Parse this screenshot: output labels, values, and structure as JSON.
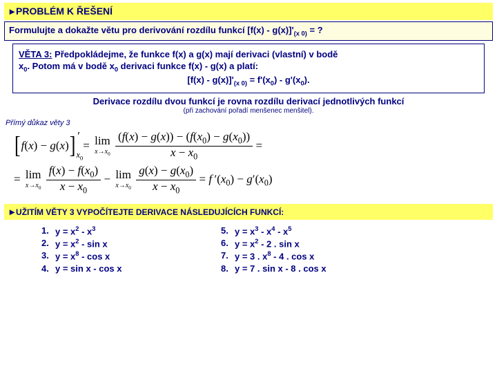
{
  "header1": "PROBLÉM K ŘEŠENÍ",
  "problem": "Formulujte a dokažte větu pro derivování rozdílu funkcí [f(x) - g(x)]'(x₀) = ?",
  "theorem_label": "VĚTA 3:",
  "theorem_l1": "Předpokládejme, že funkce f(x) a g(x) mají derivaci (vlastní) v bodě",
  "theorem_l2a": "x",
  "theorem_l2b": ". Potom má v bodě x",
  "theorem_l2c": " derivaci funkce f(x) - g(x) a platí:",
  "theorem_formula": "[f(x) - g(x)]'(x₀) = f'(x₀) - g'(x₀).",
  "summary": "Derivace rozdílu dvou funkcí je rovna rozdílu derivací jednotlivých funkcí",
  "note": "(při zachování pořadí menšenec menšitel).",
  "proof_label": "Přímý důkaz věty 3",
  "header2": "UŽITÍM VĚTY 3 VYPOČÍTEJTE DERIVACE NÁSLEDUJÍCÍCH FUNKCÍ:",
  "ex": {
    "n1": "1.",
    "t1a": "y = x",
    "t1b": " - x",
    "n2": "2.",
    "t2": "y = x",
    "t2b": " - sin x",
    "n3": "3.",
    "t3": "y = x",
    "t3b": " - cos x",
    "n4": "4.",
    "t4": "y = sin x - cos x",
    "n5": "5.",
    "t5a": "y = x",
    "t5b": " - x",
    "t5c": " - x",
    "n6": "6.",
    "t6": "y = x",
    "t6b": " - 2 . sin x",
    "n7": "7.",
    "t7": "y = 3 . x",
    "t7b": " - 4 . cos x",
    "n8": "8.",
    "t8": "y = 7 . sin x - 8 . cos x"
  },
  "colors": {
    "heading_bg": "#ffff66",
    "text": "#000080",
    "border": "#000080"
  }
}
